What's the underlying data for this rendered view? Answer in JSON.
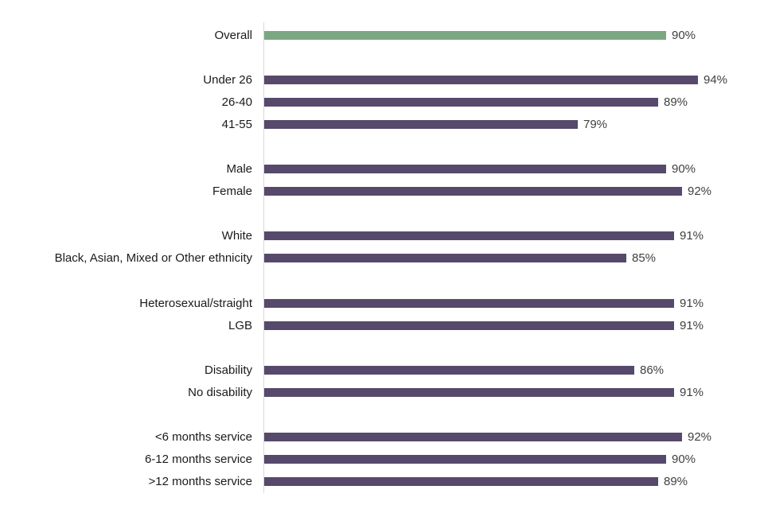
{
  "chart_data": {
    "type": "bar",
    "orientation": "horizontal",
    "title": "",
    "xlabel": "",
    "ylabel": "",
    "unit": "%",
    "xlim": [
      40,
      100
    ],
    "grid": false,
    "legend": "none",
    "bar_color": "#56496C",
    "highlight_color": "#7BA883",
    "axis_line_color": "#D9D9D9",
    "categories": [
      "Overall",
      "Under 26",
      "26-40",
      "41-55",
      "Male",
      "Female",
      "White",
      "Black, Asian, Mixed or Other ethnicity",
      "Heterosexual/straight",
      "LGB",
      "Disability",
      "No disability",
      "<6 months service",
      "6-12 months service",
      ">12 months service"
    ],
    "values": [
      90,
      94,
      89,
      79,
      90,
      92,
      91,
      85,
      91,
      91,
      86,
      91,
      92,
      90,
      89
    ],
    "groups": [
      {
        "rows": [
          {
            "label": "Overall",
            "value": 90,
            "value_label": "90%",
            "highlight": true
          }
        ]
      },
      {
        "rows": [
          {
            "label": "Under 26",
            "value": 94,
            "value_label": "94%"
          },
          {
            "label": "26-40",
            "value": 89,
            "value_label": "89%"
          },
          {
            "label": "41-55",
            "value": 79,
            "value_label": "79%"
          }
        ]
      },
      {
        "rows": [
          {
            "label": "Male",
            "value": 90,
            "value_label": "90%"
          },
          {
            "label": "Female",
            "value": 92,
            "value_label": "92%"
          }
        ]
      },
      {
        "rows": [
          {
            "label": "White",
            "value": 91,
            "value_label": "91%"
          },
          {
            "label": "Black, Asian, Mixed or Other ethnicity",
            "value": 85,
            "value_label": "85%"
          }
        ]
      },
      {
        "rows": [
          {
            "label": "Heterosexual/straight",
            "value": 91,
            "value_label": "91%"
          },
          {
            "label": "LGB",
            "value": 91,
            "value_label": "91%"
          }
        ]
      },
      {
        "rows": [
          {
            "label": "Disability",
            "value": 86,
            "value_label": "86%"
          },
          {
            "label": "No disability",
            "value": 91,
            "value_label": "91%"
          }
        ]
      },
      {
        "rows": [
          {
            "label": "<6 months service",
            "value": 92,
            "value_label": "92%"
          },
          {
            "label": "6-12 months service",
            "value": 90,
            "value_label": "90%"
          },
          {
            "label": ">12 months service",
            "value": 89,
            "value_label": "89%"
          }
        ]
      }
    ]
  }
}
